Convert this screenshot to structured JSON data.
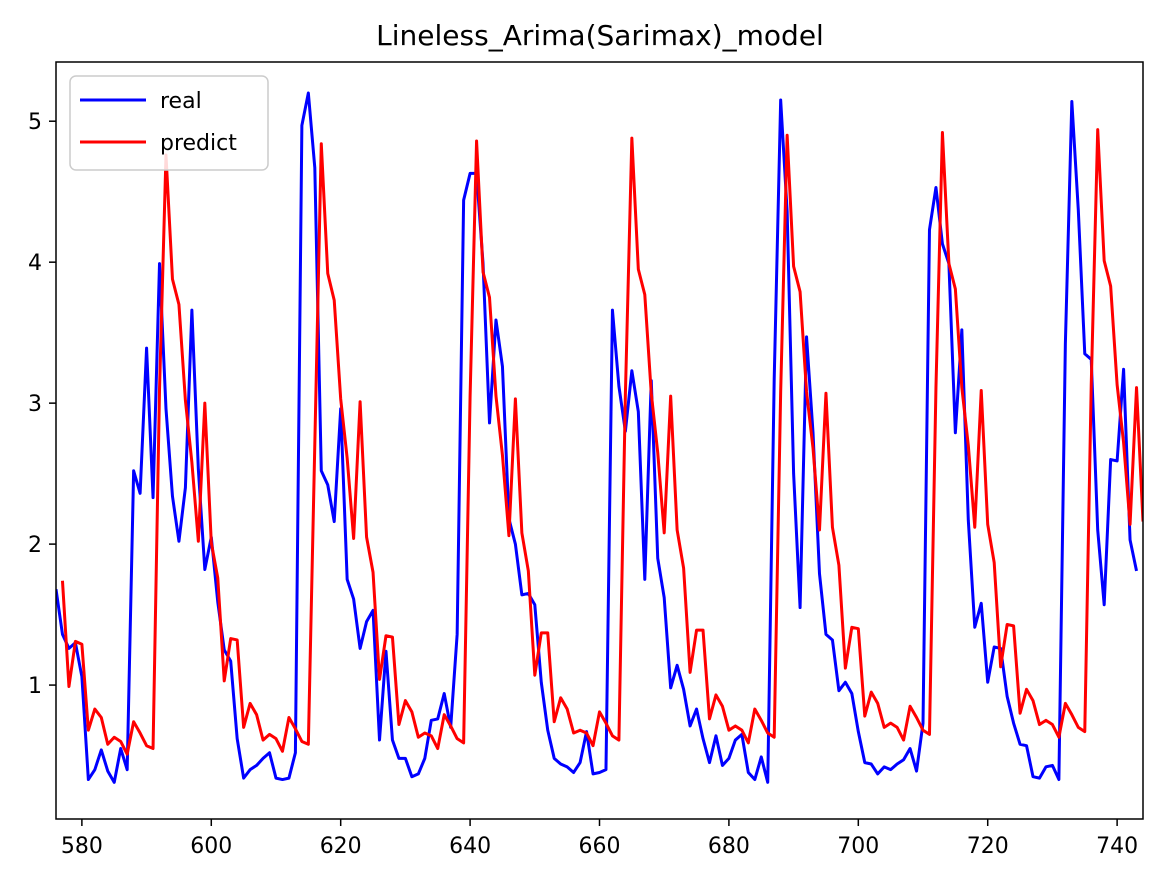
{
  "chart_data": {
    "type": "line",
    "title": "Lineless_Arima(Sarimax)_model",
    "xlabel": "",
    "ylabel": "",
    "xlim": [
      576,
      744
    ],
    "ylim": [
      0.05,
      5.42
    ],
    "xticks": [
      580,
      600,
      620,
      640,
      660,
      680,
      700,
      720,
      740
    ],
    "yticks": [
      1,
      2,
      3,
      4,
      5
    ],
    "grid": false,
    "legend_position": "upper left",
    "x_start": 576,
    "series": [
      {
        "name": "real",
        "color": "#0000ff",
        "values": [
          1.68,
          1.36,
          1.26,
          1.3,
          1.06,
          0.33,
          0.4,
          0.54,
          0.39,
          0.31,
          0.55,
          0.4,
          2.52,
          2.36,
          3.39,
          2.33,
          3.99,
          2.96,
          2.34,
          2.02,
          2.4,
          3.66,
          2.53,
          1.82,
          2.05,
          1.59,
          1.25,
          1.17,
          0.62,
          0.34,
          0.4,
          0.43,
          0.48,
          0.52,
          0.34,
          0.33,
          0.34,
          0.52,
          4.97,
          5.2,
          4.67,
          2.52,
          2.42,
          2.16,
          2.96,
          1.75,
          1.61,
          1.26,
          1.45,
          1.53,
          0.61,
          1.24,
          0.61,
          0.48,
          0.48,
          0.35,
          0.37,
          0.48,
          0.75,
          0.76,
          0.94,
          0.7,
          1.36,
          4.44,
          4.63,
          4.63,
          3.99,
          2.86,
          3.59,
          3.26,
          2.18,
          2.0,
          1.64,
          1.65,
          1.57,
          1.02,
          0.68,
          0.48,
          0.44,
          0.42,
          0.38,
          0.45,
          0.67,
          0.37,
          0.38,
          0.4,
          3.66,
          3.12,
          2.8,
          3.23,
          2.94,
          1.75,
          3.16,
          1.9,
          1.62,
          0.98,
          1.14,
          0.97,
          0.71,
          0.83,
          0.62,
          0.45,
          0.64,
          0.43,
          0.48,
          0.61,
          0.65,
          0.38,
          0.33,
          0.49,
          0.31,
          3.17,
          5.15,
          4.36,
          2.5,
          1.55,
          3.47,
          2.79,
          1.79,
          1.36,
          1.32,
          0.96,
          1.02,
          0.94,
          0.67,
          0.45,
          0.44,
          0.37,
          0.42,
          0.4,
          0.44,
          0.47,
          0.55,
          0.39,
          0.73,
          4.23,
          4.53,
          4.13,
          3.99,
          2.79,
          3.52,
          2.17,
          1.41,
          1.58,
          1.02,
          1.27,
          1.26,
          0.92,
          0.73,
          0.58,
          0.57,
          0.35,
          0.34,
          0.42,
          0.43,
          0.33,
          3.42,
          5.14,
          4.37,
          3.35,
          3.31,
          2.1,
          1.57,
          2.6,
          2.59,
          3.24,
          2.03,
          1.81
        ]
      },
      {
        "name": "predict",
        "color": "#ff0000",
        "values": [
          null,
          1.74,
          0.99,
          1.31,
          1.29,
          0.68,
          0.83,
          0.77,
          0.58,
          0.63,
          0.6,
          0.51,
          0.74,
          0.66,
          0.57,
          0.55,
          3.1,
          4.76,
          3.88,
          3.7,
          3.02,
          2.58,
          2.02,
          3.0,
          2.01,
          1.76,
          1.03,
          1.33,
          1.32,
          0.7,
          0.87,
          0.79,
          0.61,
          0.65,
          0.62,
          0.53,
          0.77,
          0.69,
          0.6,
          0.58,
          2.71,
          4.84,
          3.92,
          3.73,
          3.03,
          2.61,
          2.04,
          3.01,
          2.05,
          1.8,
          1.04,
          1.35,
          1.34,
          0.72,
          0.89,
          0.81,
          0.63,
          0.66,
          0.64,
          0.55,
          0.79,
          0.71,
          0.62,
          0.59,
          3.05,
          4.86,
          3.93,
          3.75,
          3.05,
          2.63,
          2.06,
          3.03,
          2.08,
          1.81,
          1.07,
          1.37,
          1.37,
          0.74,
          0.91,
          0.83,
          0.66,
          0.68,
          0.66,
          0.57,
          0.81,
          0.73,
          0.64,
          0.61,
          3.06,
          4.88,
          3.95,
          3.77,
          3.07,
          2.65,
          2.08,
          3.05,
          2.1,
          1.83,
          1.09,
          1.39,
          1.39,
          0.76,
          0.93,
          0.85,
          0.68,
          0.71,
          0.68,
          0.59,
          0.83,
          0.75,
          0.66,
          0.63,
          3.08,
          4.9,
          3.97,
          3.79,
          3.08,
          2.68,
          2.1,
          3.07,
          2.12,
          1.85,
          1.12,
          1.41,
          1.4,
          0.78,
          0.95,
          0.87,
          0.7,
          0.73,
          0.7,
          0.61,
          0.85,
          0.77,
          0.68,
          0.65,
          3.11,
          4.92,
          3.99,
          3.81,
          3.11,
          2.7,
          2.12,
          3.09,
          2.14,
          1.87,
          1.13,
          1.43,
          1.42,
          0.8,
          0.97,
          0.89,
          0.72,
          0.75,
          0.72,
          0.63,
          0.87,
          0.79,
          0.7,
          0.67,
          3.13,
          4.94,
          4.01,
          3.83,
          3.13,
          2.72,
          2.14,
          3.11,
          2.16
        ]
      }
    ]
  }
}
